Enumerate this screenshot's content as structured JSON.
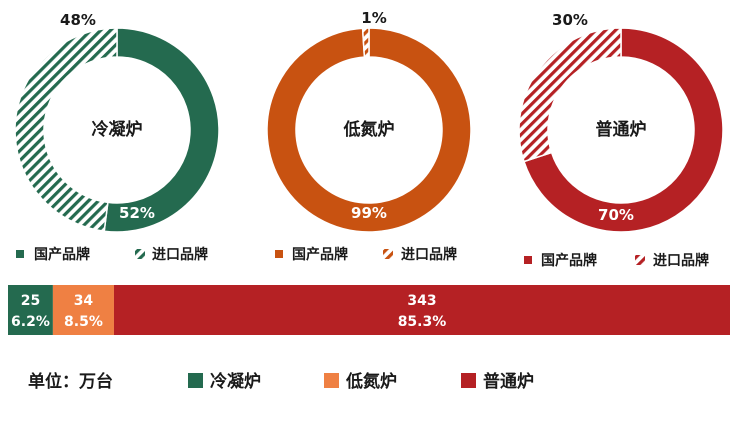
{
  "colors": {
    "cold": "#246a4f",
    "nitrogen": "#c85211",
    "ordinary": "#b52124",
    "nitrogen_legend": "#ef8043",
    "white": "#ffffff",
    "text": "#1a1a1a"
  },
  "chart_data": [
    {
      "type": "pie",
      "variant": "donut",
      "center_label": "冷凝炉",
      "slices": [
        {
          "name": "国产品牌",
          "value": 52,
          "label": "52%",
          "pattern": "solid",
          "color": "#246a4f"
        },
        {
          "name": "进口品牌",
          "value": 48,
          "label": "48%",
          "pattern": "hatch",
          "color": "#246a4f"
        }
      ],
      "legend": [
        "国产品牌",
        "进口品牌"
      ]
    },
    {
      "type": "pie",
      "variant": "donut",
      "center_label": "低氮炉",
      "slices": [
        {
          "name": "国产品牌",
          "value": 99,
          "label": "99%",
          "pattern": "solid",
          "color": "#c85211"
        },
        {
          "name": "进口品牌",
          "value": 1,
          "label": "1%",
          "pattern": "hatch",
          "color": "#c85211"
        }
      ],
      "legend": [
        "国产品牌",
        "进口品牌"
      ]
    },
    {
      "type": "pie",
      "variant": "donut",
      "center_label": "普通炉",
      "slices": [
        {
          "name": "国产品牌",
          "value": 70,
          "label": "70%",
          "pattern": "solid",
          "color": "#b52124"
        },
        {
          "name": "进口品牌",
          "value": 30,
          "label": "30%",
          "pattern": "hatch",
          "color": "#b52124"
        }
      ],
      "legend": [
        "国产品牌",
        "进口品牌"
      ]
    },
    {
      "type": "bar",
      "orientation": "horizontal",
      "stacked": true,
      "segments": [
        {
          "name": "冷凝炉",
          "value": 25,
          "value_label": "25",
          "share_label": "6.2%",
          "color": "#246a4f"
        },
        {
          "name": "低氮炉",
          "value": 34,
          "value_label": "34",
          "share_label": "8.5%",
          "color": "#ef8043"
        },
        {
          "name": "普通炉",
          "value": 343,
          "value_label": "343",
          "share_label": "85.3%",
          "color": "#b52124"
        }
      ],
      "unit_label": "单位：万台",
      "legend": [
        "冷凝炉",
        "低氮炉",
        "普通炉"
      ]
    }
  ]
}
